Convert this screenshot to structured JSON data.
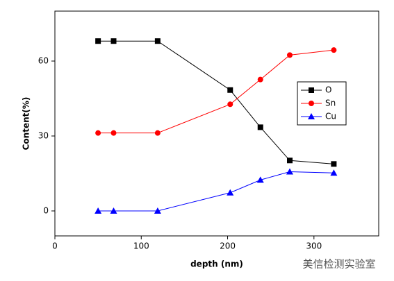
{
  "chart_data": {
    "type": "line",
    "xlabel": "depth (nm)",
    "ylabel": "Content(%)",
    "xlim": [
      0,
      375
    ],
    "xticks": [
      0,
      100,
      200,
      300
    ],
    "ylim": [
      -10,
      80
    ],
    "yticks": [
      0,
      30,
      60
    ],
    "legend": "upper right",
    "series": [
      {
        "name": "O",
        "color": "#000000",
        "marker": "square",
        "x": [
          50,
          68,
          119,
          203,
          238,
          272,
          323
        ],
        "values": [
          68,
          68,
          68,
          48.4,
          33.5,
          20.2,
          18.8
        ]
      },
      {
        "name": "Sn",
        "color": "#ff0000",
        "marker": "circle",
        "x": [
          50,
          68,
          119,
          203,
          238,
          272,
          323
        ],
        "values": [
          31.2,
          31.2,
          31.2,
          42.7,
          52.6,
          62.4,
          64.4
        ]
      },
      {
        "name": "Cu",
        "color": "#0000ff",
        "marker": "triangle",
        "x": [
          50,
          68,
          119,
          203,
          238,
          272,
          323
        ],
        "values": [
          0,
          0,
          0,
          7.3,
          12.4,
          15.7,
          15.2
        ]
      }
    ],
    "watermark": "美信检测实验室"
  }
}
